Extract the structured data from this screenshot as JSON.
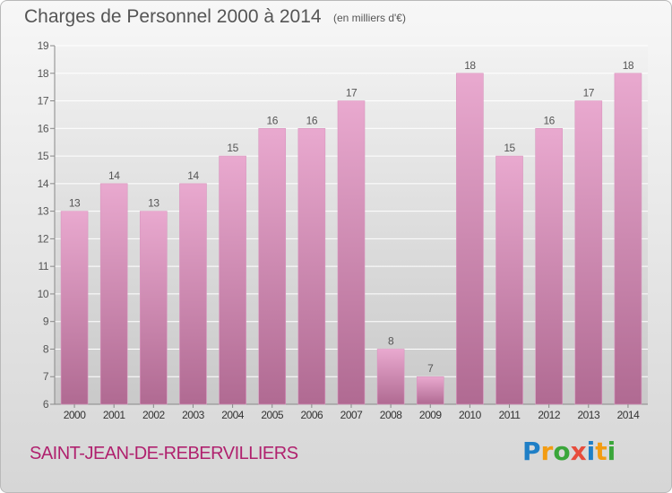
{
  "title": "Charges de Personnel 2000 à 2014",
  "subtitle": "(en milliers d'€)",
  "commune": "SAINT-JEAN-DE-REBERVILLIERS",
  "logo": {
    "letters": [
      "P",
      "r",
      "o",
      "x",
      "i",
      "t",
      "i"
    ],
    "colors": [
      "#1f7fc6",
      "#f39c12",
      "#3aa63a",
      "#e74c3c",
      "#1f7fc6",
      "#f39c12",
      "#3aa63a"
    ]
  },
  "colors": {
    "bar_top": "#e9a9cf",
    "bar_bottom": "#b06a92",
    "grid": "#ffffff",
    "plot_bg_top": "#f2f2f2",
    "plot_bg_bottom": "#c9c9c9",
    "text": "#555555",
    "commune": "#b0216e"
  },
  "chart_data": {
    "type": "bar",
    "categories": [
      "2000",
      "2001",
      "2002",
      "2003",
      "2004",
      "2005",
      "2006",
      "2007",
      "2008",
      "2009",
      "2010",
      "2011",
      "2012",
      "2013",
      "2014"
    ],
    "values": [
      13,
      14,
      13,
      14,
      15,
      16,
      16,
      17,
      8,
      7,
      18,
      15,
      16,
      17,
      18
    ],
    "value_labels": [
      "13",
      "14",
      "13",
      "14",
      "15",
      "16",
      "16",
      "17",
      "8",
      "7",
      "18",
      "15",
      "16",
      "17",
      "18"
    ],
    "title": "Charges de Personnel 2000 à 2014",
    "subtitle": "(en milliers d'€)",
    "xlabel": "",
    "ylabel": "",
    "ylim": [
      6,
      19
    ],
    "yticks": [
      "6",
      "7",
      "8",
      "9",
      "10",
      "11",
      "12",
      "13",
      "14",
      "15",
      "16",
      "17",
      "18",
      "19"
    ],
    "grid": true,
    "legend": "none"
  }
}
